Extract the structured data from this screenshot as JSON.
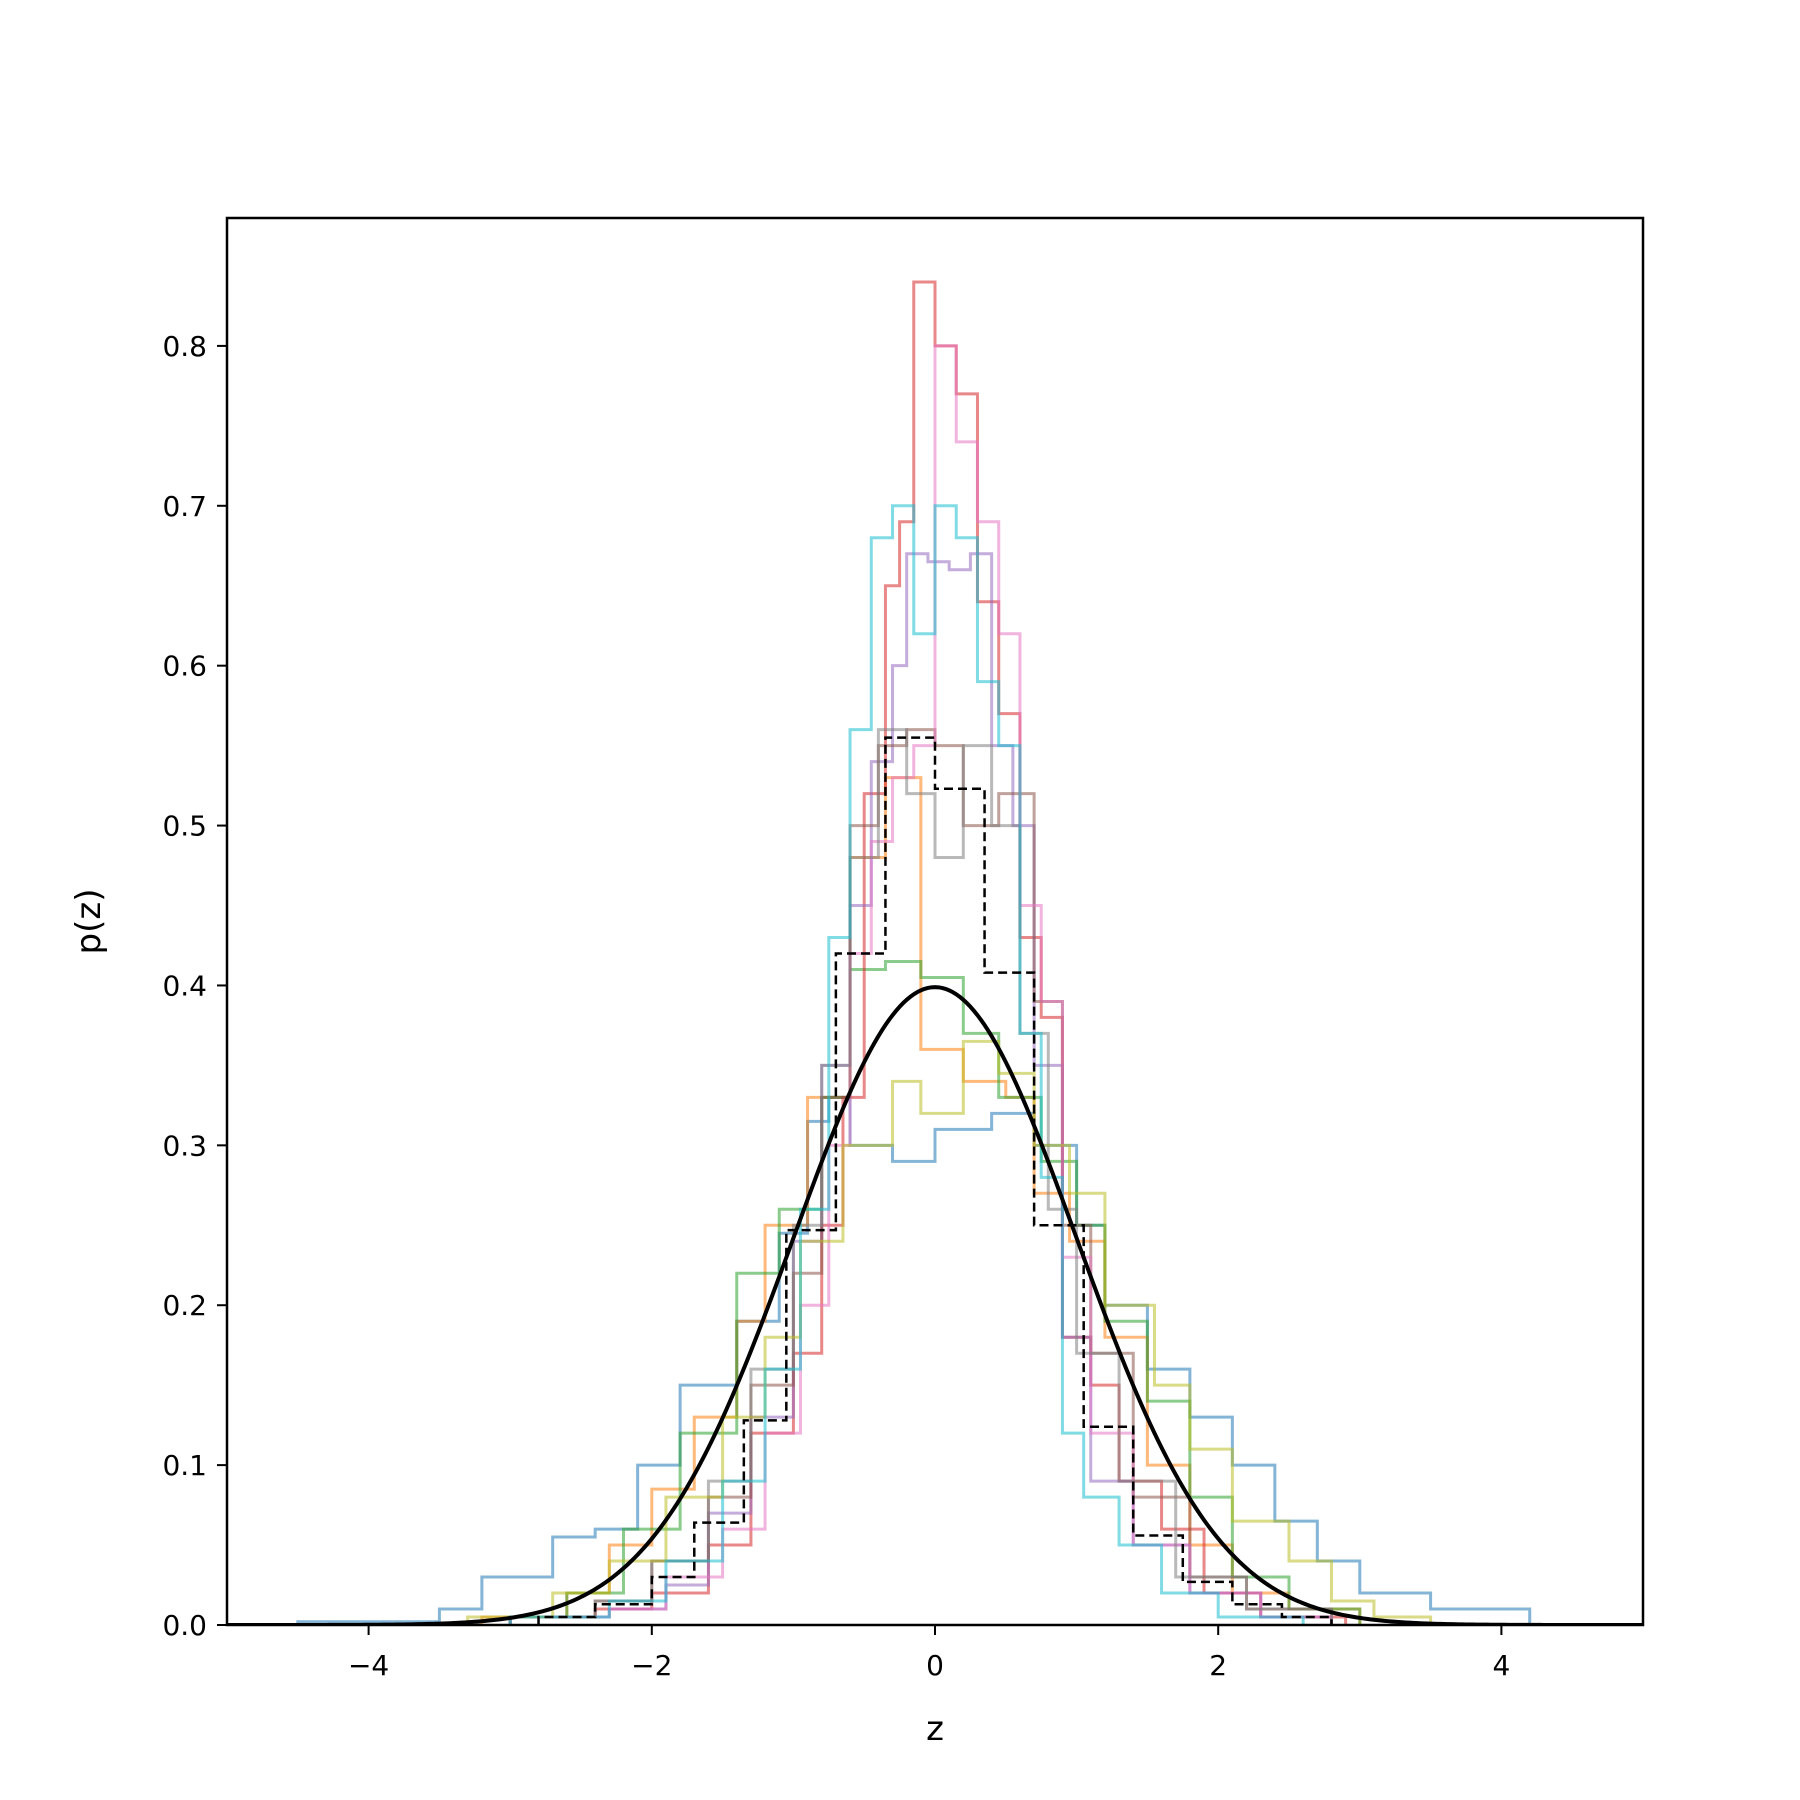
{
  "chart_data": {
    "type": "histogram",
    "title": "",
    "xlabel": "z",
    "ylabel": "p(z)",
    "xlim": [
      -5,
      5
    ],
    "ylim": [
      0,
      0.88
    ],
    "xticks": [
      -4,
      -2,
      0,
      2,
      4
    ],
    "xtick_labels": [
      "−4",
      "−2",
      "0",
      "2",
      "4"
    ],
    "yticks": [
      0.0,
      0.1,
      0.2,
      0.3,
      0.4,
      0.5,
      0.6,
      0.7,
      0.8
    ],
    "ytick_labels": [
      "0.0",
      "0.1",
      "0.2",
      "0.3",
      "0.4",
      "0.5",
      "0.6",
      "0.7",
      "0.8"
    ],
    "grid": false,
    "legend": "none",
    "series": [
      {
        "color": "#1f77b4",
        "style": "step",
        "x": [
          -4.5,
          -3.5,
          -3.2,
          -2.7,
          -2.4,
          -2.1,
          -1.8,
          -1.4,
          -1.1,
          -0.9,
          -0.75,
          -0.6,
          -0.3,
          0.0,
          0.4,
          0.7,
          1.0,
          1.2,
          1.5,
          1.8,
          2.1,
          2.4,
          2.7,
          3.0,
          3.5,
          4.2
        ],
        "y": [
          0.002,
          0.01,
          0.03,
          0.055,
          0.06,
          0.1,
          0.15,
          0.19,
          0.245,
          0.315,
          0.33,
          0.3,
          0.29,
          0.31,
          0.32,
          0.3,
          0.25,
          0.2,
          0.16,
          0.13,
          0.1,
          0.065,
          0.04,
          0.02,
          0.01
        ]
      },
      {
        "color": "#ff7f0e",
        "style": "step",
        "x": [
          -3.2,
          -2.6,
          -2.3,
          -2.0,
          -1.7,
          -1.4,
          -1.2,
          -0.9,
          -0.6,
          -0.35,
          -0.1,
          0.2,
          0.5,
          0.7,
          0.95,
          1.2,
          1.5,
          1.8,
          2.1,
          2.5,
          3.0
        ],
        "y": [
          0.005,
          0.02,
          0.05,
          0.085,
          0.13,
          0.19,
          0.25,
          0.33,
          0.48,
          0.53,
          0.36,
          0.34,
          0.33,
          0.27,
          0.24,
          0.18,
          0.1,
          0.05,
          0.02,
          0.01
        ]
      },
      {
        "color": "#2ca02c",
        "style": "step",
        "x": [
          -3.0,
          -2.6,
          -2.2,
          -1.8,
          -1.4,
          -1.1,
          -0.8,
          -0.6,
          -0.35,
          -0.1,
          0.2,
          0.45,
          0.75,
          1.0,
          1.2,
          1.5,
          1.8,
          2.1,
          2.5,
          3.0
        ],
        "y": [
          0.005,
          0.02,
          0.06,
          0.12,
          0.22,
          0.26,
          0.33,
          0.41,
          0.415,
          0.405,
          0.37,
          0.33,
          0.29,
          0.25,
          0.19,
          0.14,
          0.08,
          0.03,
          0.01
        ]
      },
      {
        "color": "#d62728",
        "style": "step",
        "x": [
          -3.0,
          -2.4,
          -2.0,
          -1.6,
          -1.3,
          -1.0,
          -0.8,
          -0.65,
          -0.5,
          -0.35,
          -0.25,
          -0.15,
          0.0,
          0.15,
          0.3,
          0.45,
          0.6,
          0.75,
          0.9,
          1.1,
          1.3,
          1.6,
          1.9,
          2.3,
          2.9
        ],
        "y": [
          0.005,
          0.01,
          0.02,
          0.05,
          0.12,
          0.17,
          0.25,
          0.33,
          0.52,
          0.65,
          0.69,
          0.84,
          0.8,
          0.77,
          0.64,
          0.57,
          0.43,
          0.38,
          0.18,
          0.15,
          0.09,
          0.06,
          0.02,
          0.005
        ]
      },
      {
        "color": "#9467bd",
        "style": "step",
        "x": [
          -3.0,
          -2.3,
          -1.9,
          -1.6,
          -1.3,
          -1.0,
          -0.8,
          -0.6,
          -0.45,
          -0.3,
          -0.2,
          -0.05,
          0.1,
          0.25,
          0.4,
          0.55,
          0.7,
          0.9,
          1.1,
          1.4,
          1.8,
          2.3,
          2.8
        ],
        "y": [
          0.005,
          0.01,
          0.025,
          0.07,
          0.13,
          0.24,
          0.35,
          0.45,
          0.54,
          0.6,
          0.67,
          0.665,
          0.66,
          0.67,
          0.55,
          0.5,
          0.35,
          0.18,
          0.09,
          0.05,
          0.02,
          0.005
        ]
      },
      {
        "color": "#8c564b",
        "style": "step",
        "x": [
          -3.0,
          -2.4,
          -2.0,
          -1.6,
          -1.3,
          -1.0,
          -0.8,
          -0.6,
          -0.4,
          -0.2,
          0.0,
          0.2,
          0.45,
          0.7,
          0.9,
          1.1,
          1.4,
          1.8,
          2.2,
          2.8
        ],
        "y": [
          0.005,
          0.015,
          0.04,
          0.08,
          0.15,
          0.22,
          0.33,
          0.5,
          0.55,
          0.56,
          0.55,
          0.5,
          0.52,
          0.39,
          0.25,
          0.17,
          0.08,
          0.03,
          0.01
        ]
      },
      {
        "color": "#e377c2",
        "style": "step",
        "x": [
          -3.0,
          -2.3,
          -1.9,
          -1.5,
          -1.2,
          -0.95,
          -0.75,
          -0.6,
          -0.45,
          -0.3,
          -0.15,
          0.0,
          0.15,
          0.3,
          0.45,
          0.6,
          0.75,
          0.9,
          1.1,
          1.4,
          1.8,
          2.3,
          2.8
        ],
        "y": [
          0.005,
          0.01,
          0.03,
          0.06,
          0.12,
          0.2,
          0.3,
          0.42,
          0.49,
          0.53,
          0.55,
          0.8,
          0.74,
          0.69,
          0.62,
          0.45,
          0.39,
          0.23,
          0.12,
          0.05,
          0.02,
          0.005
        ]
      },
      {
        "color": "#7f7f7f",
        "style": "step",
        "x": [
          -3.0,
          -2.4,
          -2.0,
          -1.6,
          -1.3,
          -1.0,
          -0.8,
          -0.6,
          -0.4,
          -0.2,
          0.0,
          0.2,
          0.4,
          0.6,
          0.8,
          1.0,
          1.3,
          1.7,
          2.2,
          2.8
        ],
        "y": [
          0.005,
          0.015,
          0.04,
          0.09,
          0.16,
          0.25,
          0.35,
          0.48,
          0.56,
          0.52,
          0.48,
          0.55,
          0.5,
          0.37,
          0.26,
          0.17,
          0.09,
          0.03,
          0.01
        ]
      },
      {
        "color": "#bcbd22",
        "style": "step",
        "x": [
          -3.3,
          -2.7,
          -2.3,
          -1.9,
          -1.5,
          -1.2,
          -0.95,
          -0.65,
          -0.3,
          -0.1,
          0.2,
          0.45,
          0.7,
          0.95,
          1.2,
          1.55,
          1.8,
          2.1,
          2.5,
          2.8,
          3.1,
          3.5
        ],
        "y": [
          0.005,
          0.02,
          0.04,
          0.08,
          0.13,
          0.18,
          0.24,
          0.3,
          0.34,
          0.32,
          0.365,
          0.345,
          0.3,
          0.27,
          0.2,
          0.15,
          0.11,
          0.065,
          0.04,
          0.015,
          0.005
        ]
      },
      {
        "color": "#17becf",
        "style": "step",
        "x": [
          -3.0,
          -2.3,
          -1.9,
          -1.5,
          -1.2,
          -0.95,
          -0.75,
          -0.6,
          -0.45,
          -0.3,
          -0.15,
          0.0,
          0.15,
          0.3,
          0.45,
          0.6,
          0.75,
          0.9,
          1.05,
          1.3,
          1.6,
          2.0,
          2.6
        ],
        "y": [
          0.005,
          0.015,
          0.04,
          0.09,
          0.16,
          0.26,
          0.43,
          0.56,
          0.68,
          0.7,
          0.62,
          0.7,
          0.68,
          0.59,
          0.55,
          0.37,
          0.28,
          0.12,
          0.08,
          0.05,
          0.02,
          0.005
        ]
      },
      {
        "color": "#000000",
        "style": "dashed-step",
        "x": [
          -2.8,
          -2.4,
          -2.0,
          -1.7,
          -1.35,
          -1.05,
          -0.7,
          -0.35,
          0.0,
          0.35,
          0.7,
          1.05,
          1.4,
          1.75,
          2.1,
          2.45,
          2.8
        ],
        "y": [
          0.005,
          0.013,
          0.03,
          0.064,
          0.128,
          0.247,
          0.42,
          0.555,
          0.523,
          0.408,
          0.25,
          0.124,
          0.056,
          0.027,
          0.013,
          0.005
        ]
      },
      {
        "color": "#000000",
        "style": "curve",
        "name": "",
        "function": "normal_pdf",
        "mu": 0,
        "sigma": 1
      }
    ]
  }
}
